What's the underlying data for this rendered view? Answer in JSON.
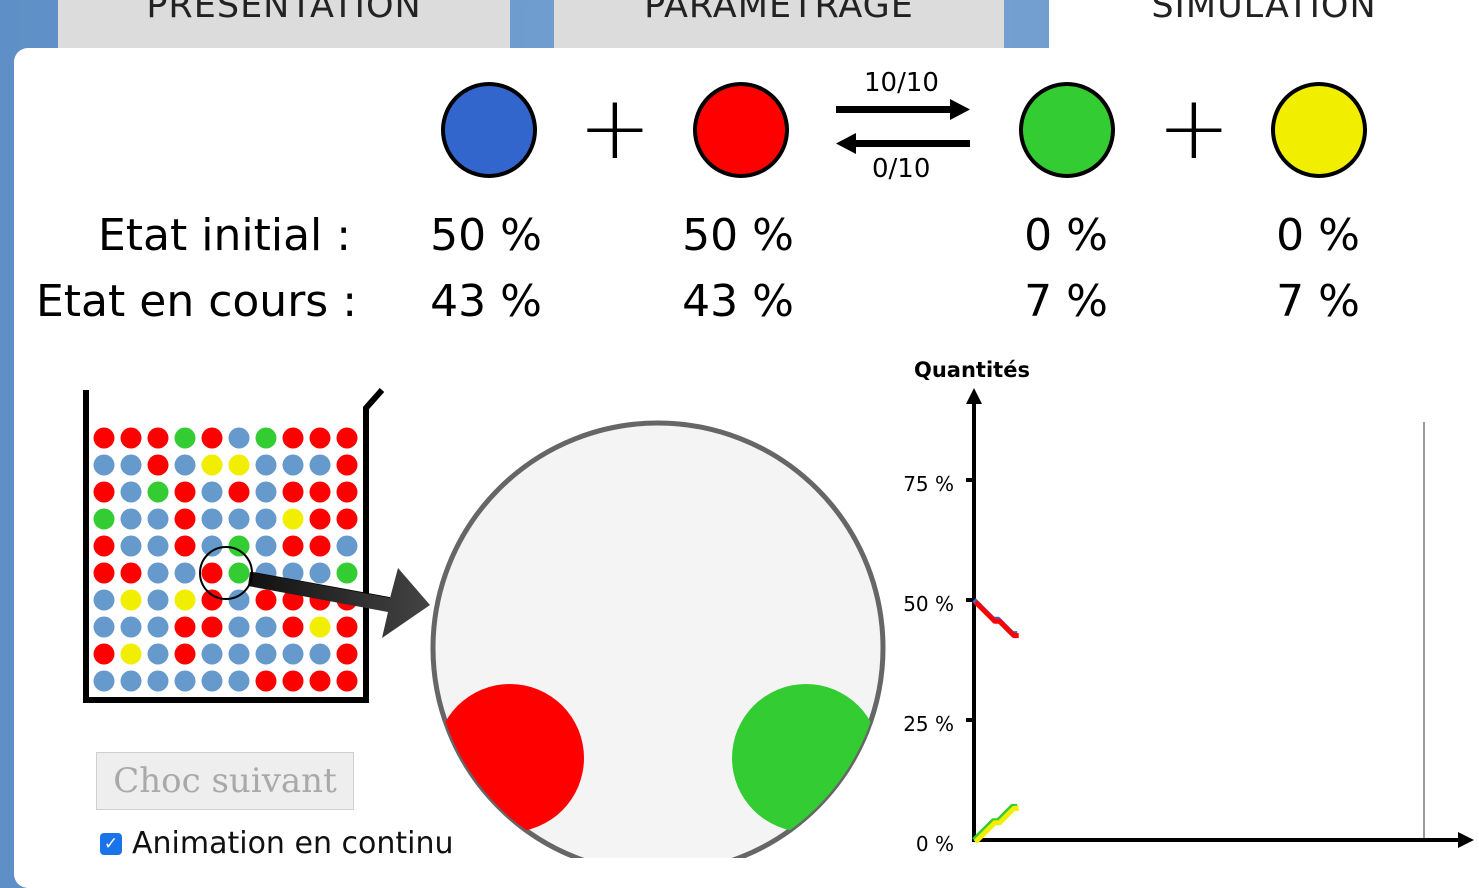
{
  "tabs": {
    "presentation": "PRÉSENTATION",
    "parametrage": "PARAMÉTRAGE",
    "simulation": "SIMULATION"
  },
  "reaction": {
    "forward_rate": "10/10",
    "backward_rate": "0/10",
    "species_colors": [
      "#3366cc",
      "#ff0000",
      "#33cc33",
      "#f2ee00"
    ]
  },
  "states": {
    "initial_label": "Etat initial :",
    "current_label": "Etat en cours :",
    "initial": [
      "50 %",
      "50 %",
      "0 %",
      "0 %"
    ],
    "current": [
      "43 %",
      "43 %",
      "7 %",
      "7 %"
    ]
  },
  "beaker": {
    "rows": [
      "rrrgrbgrrr",
      "bbrbyybbbr",
      "rbgrbrbrrr",
      "gbbrbbbyrr",
      "rbbrbgbrrb",
      "rrbbrgbbbg",
      "bybyrbrrrr",
      "bbbrrbbryr",
      "rybrbbbbbr",
      "bbbbbbrrrr"
    ],
    "colors": {
      "r": "#ff0000",
      "b": "#6699cc",
      "g": "#33cc33",
      "y": "#f2ee00"
    }
  },
  "controls": {
    "next_collision": "Choc suivant",
    "continuous_animation": "Animation en continu",
    "continuous_checked": true
  },
  "chart_data": {
    "type": "line",
    "ylabel": "Quantités",
    "yticks": [
      "0 %",
      "25 %",
      "50 %",
      "75 %"
    ],
    "ylim": [
      0,
      90
    ],
    "xlim": [
      0,
      100
    ],
    "series": [
      {
        "color": "#3366cc",
        "x": [
          0,
          1,
          2,
          3,
          4,
          5,
          6,
          7,
          8,
          9
        ],
        "y": [
          50,
          49,
          48,
          47,
          46,
          46,
          45,
          44,
          43,
          43
        ]
      },
      {
        "color": "#ff0000",
        "x": [
          0,
          1,
          2,
          3,
          4,
          5,
          6,
          7,
          8,
          9
        ],
        "y": [
          50,
          49,
          48,
          47,
          46,
          46,
          45,
          44,
          43,
          43
        ]
      },
      {
        "color": "#33cc33",
        "x": [
          0,
          1,
          2,
          3,
          4,
          5,
          6,
          7,
          8,
          9
        ],
        "y": [
          0,
          1,
          2,
          3,
          4,
          4,
          5,
          6,
          7,
          7
        ]
      },
      {
        "color": "#f2ee00",
        "x": [
          0,
          1,
          2,
          3,
          4,
          5,
          6,
          7,
          8,
          9
        ],
        "y": [
          0,
          1,
          2,
          3,
          4,
          4,
          5,
          6,
          7,
          7
        ]
      }
    ]
  }
}
